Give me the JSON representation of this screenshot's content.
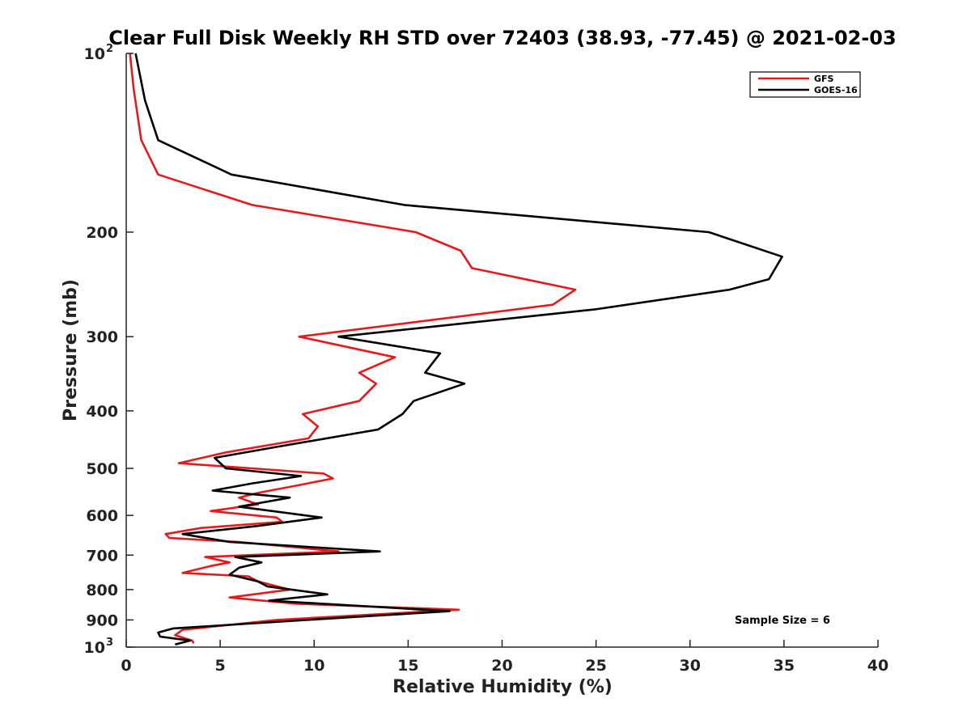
{
  "chart_data": {
    "type": "line",
    "title": "Clear Full Disk Weekly RH STD over 72403 (38.93, -77.45) @ 2021-02-03",
    "xlabel": "Relative Humidity (%)",
    "ylabel": "Pressure (mb)",
    "xlim": [
      0,
      40
    ],
    "ylim": [
      1000,
      100
    ],
    "yscale": "log",
    "y_reversed": true,
    "grid": false,
    "legend_position": "top-right",
    "x_ticks": [
      "0",
      "5",
      "10",
      "15",
      "20",
      "25",
      "30",
      "35",
      "40"
    ],
    "y_ticks": [
      {
        "value": 100,
        "label": "10",
        "sup": "2"
      },
      {
        "value": 200,
        "label": "200",
        "sup": ""
      },
      {
        "value": 300,
        "label": "300",
        "sup": ""
      },
      {
        "value": 400,
        "label": "400",
        "sup": ""
      },
      {
        "value": 500,
        "label": "500",
        "sup": ""
      },
      {
        "value": 600,
        "label": "600",
        "sup": ""
      },
      {
        "value": 700,
        "label": "700",
        "sup": ""
      },
      {
        "value": 800,
        "label": "800",
        "sup": ""
      },
      {
        "value": 900,
        "label": "900",
        "sup": ""
      },
      {
        "value": 1000,
        "label": "10",
        "sup": "3"
      }
    ],
    "annotation": "Sample Size = 6",
    "series": [
      {
        "name": "GFS",
        "color": "#e41a1c",
        "points": [
          [
            0.2,
            100
          ],
          [
            0.4,
            115
          ],
          [
            0.8,
            140
          ],
          [
            1.7,
            160
          ],
          [
            6.7,
            180
          ],
          [
            15.4,
            200
          ],
          [
            17.8,
            215
          ],
          [
            18.4,
            230
          ],
          [
            23.9,
            250
          ],
          [
            22.7,
            265
          ],
          [
            9.2,
            300
          ],
          [
            14.3,
            325
          ],
          [
            12.4,
            345
          ],
          [
            13.3,
            360
          ],
          [
            12.4,
            385
          ],
          [
            9.4,
            405
          ],
          [
            10.2,
            425
          ],
          [
            9.7,
            445
          ],
          [
            5.3,
            470
          ],
          [
            2.8,
            490
          ],
          [
            10.5,
            510
          ],
          [
            11.0,
            520
          ],
          [
            9.0,
            535
          ],
          [
            7.0,
            550
          ],
          [
            6.0,
            560
          ],
          [
            7.0,
            575
          ],
          [
            4.5,
            590
          ],
          [
            8.0,
            605
          ],
          [
            8.3,
            615
          ],
          [
            4.0,
            630
          ],
          [
            2.1,
            645
          ],
          [
            2.3,
            655
          ],
          [
            6.0,
            665
          ],
          [
            11.3,
            690
          ],
          [
            4.2,
            705
          ],
          [
            5.5,
            720
          ],
          [
            4.5,
            730
          ],
          [
            3.0,
            750
          ],
          [
            6.5,
            760
          ],
          [
            7.0,
            775
          ],
          [
            8.7,
            800
          ],
          [
            5.5,
            825
          ],
          [
            9.0,
            845
          ],
          [
            17.7,
            865
          ],
          [
            8.0,
            900
          ],
          [
            3.0,
            935
          ],
          [
            2.6,
            955
          ],
          [
            3.5,
            975
          ],
          [
            3.6,
            985
          ]
        ]
      },
      {
        "name": "GOES-16",
        "color": "#000000",
        "points": [
          [
            0.5,
            100
          ],
          [
            1.0,
            120
          ],
          [
            1.7,
            140
          ],
          [
            5.6,
            160
          ],
          [
            14.8,
            180
          ],
          [
            31.0,
            200
          ],
          [
            34.9,
            220
          ],
          [
            34.2,
            240
          ],
          [
            32.1,
            250
          ],
          [
            24.9,
            270
          ],
          [
            11.3,
            300
          ],
          [
            16.7,
            320
          ],
          [
            15.9,
            345
          ],
          [
            18.0,
            360
          ],
          [
            15.3,
            385
          ],
          [
            14.7,
            405
          ],
          [
            13.4,
            430
          ],
          [
            8.0,
            460
          ],
          [
            4.7,
            480
          ],
          [
            5.3,
            500
          ],
          [
            9.3,
            515
          ],
          [
            6.7,
            530
          ],
          [
            4.6,
            545
          ],
          [
            8.7,
            560
          ],
          [
            6.0,
            580
          ],
          [
            10.4,
            605
          ],
          [
            7.0,
            625
          ],
          [
            3.0,
            645
          ],
          [
            5.5,
            665
          ],
          [
            13.5,
            690
          ],
          [
            5.8,
            705
          ],
          [
            7.2,
            720
          ],
          [
            6.0,
            735
          ],
          [
            5.5,
            755
          ],
          [
            7.0,
            775
          ],
          [
            7.5,
            790
          ],
          [
            10.7,
            815
          ],
          [
            7.6,
            835
          ],
          [
            17.2,
            870
          ],
          [
            12.0,
            890
          ],
          [
            2.5,
            930
          ],
          [
            1.7,
            945
          ],
          [
            1.8,
            960
          ],
          [
            3.4,
            975
          ],
          [
            2.6,
            990
          ]
        ]
      }
    ]
  }
}
